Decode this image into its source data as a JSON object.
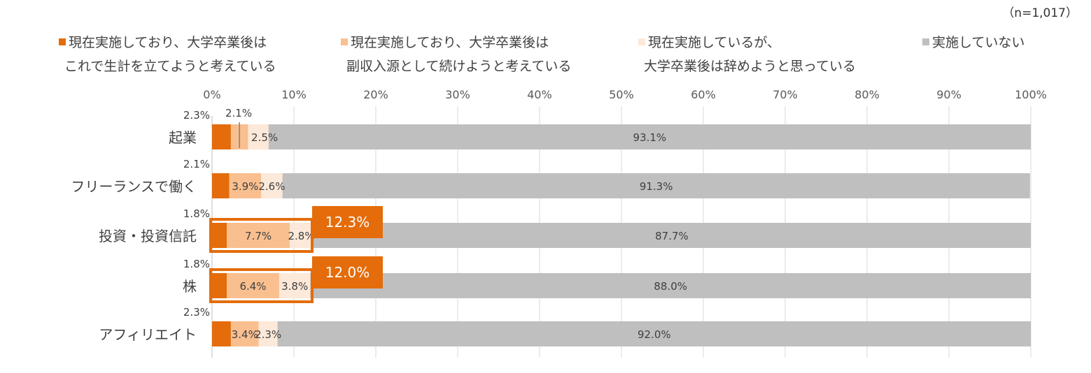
{
  "chart_data": {
    "type": "bar",
    "orientation": "horizontal",
    "stacked": true,
    "sample_note": "（n=1,017）",
    "categories": [
      "起業",
      "フリーランスで働く",
      "投資・投資信託",
      "株",
      "アフィリエイト"
    ],
    "series": [
      {
        "name_line1": "現在実施しており、大学卒業後は",
        "name_line2": "これで生計を立てようと考えている",
        "color": "#E46C0A",
        "values": [
          2.3,
          2.1,
          1.8,
          1.8,
          2.3
        ],
        "labels": [
          "2.3%",
          "2.1%",
          "1.8%",
          "1.8%",
          "2.3%"
        ]
      },
      {
        "name_line1": "現在実施しており、大学卒業後は",
        "name_line2": "副収入源として続けようと考えている",
        "color": "#F9BF8F",
        "values": [
          2.1,
          3.9,
          7.7,
          6.4,
          3.4
        ],
        "labels": [
          "2.1%",
          "3.9%",
          "7.7%",
          "6.4%",
          "3.4%"
        ]
      },
      {
        "name_line1": "現在実施しているが、",
        "name_line2": "大学卒業後は辞めようと思っている",
        "color": "#FDE9D9",
        "values": [
          2.5,
          2.6,
          2.8,
          3.8,
          2.3
        ],
        "labels": [
          "2.5%",
          "2.6%",
          "2.8%",
          "3.8%",
          "2.3%"
        ]
      },
      {
        "name_line1": "実施していない",
        "name_line2": "",
        "color": "#BFBFBF",
        "values": [
          93.1,
          91.3,
          87.7,
          88.0,
          92.0
        ],
        "labels": [
          "93.1%",
          "91.3%",
          "87.7%",
          "88.0%",
          "92.0%"
        ]
      }
    ],
    "xlim": [
      0,
      100
    ],
    "x_ticks": [
      "0%",
      "10%",
      "20%",
      "30%",
      "40%",
      "50%",
      "60%",
      "70%",
      "80%",
      "90%",
      "100%"
    ],
    "legend_position": "top",
    "grid": true,
    "highlights": [
      {
        "category": "投資・投資信託",
        "label": "12.3%",
        "value": 12.3,
        "color": "#E46C0A"
      },
      {
        "category": "株",
        "label": "12.0%",
        "value": 12.0,
        "color": "#E46C0A"
      }
    ]
  }
}
